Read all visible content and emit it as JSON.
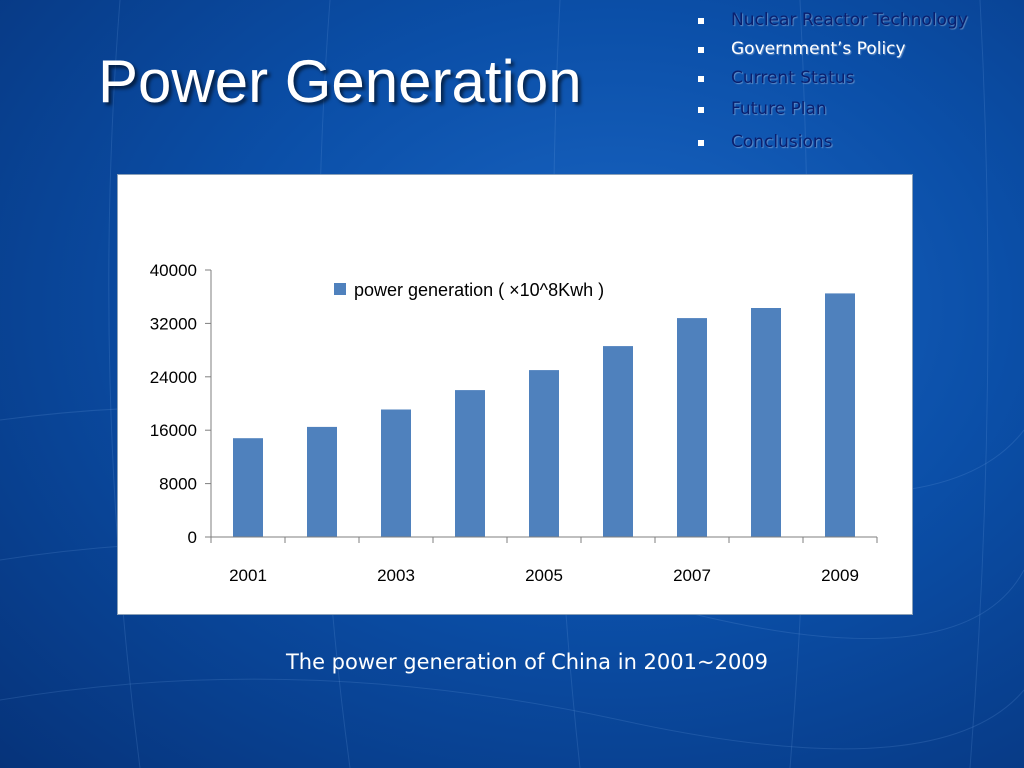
{
  "slide": {
    "title": "Power Generation",
    "caption": "The power generation of China in 2001~2009"
  },
  "nav": {
    "items": [
      {
        "label": "Nuclear Reactor Technology",
        "color": "#0a1f6e"
      },
      {
        "label": "Government’s Policy",
        "color": "#ffffff"
      },
      {
        "label": "Current Status",
        "color": "#0a1f6e"
      },
      {
        "label": "Future Plan",
        "color": "#0a1f6e"
      },
      {
        "label": "Conclusions",
        "color": "#0a1f6e"
      }
    ]
  },
  "colors": {
    "bar": "#4f81bd",
    "axis": "#7f7f7f"
  },
  "chart_data": {
    "type": "bar",
    "x": [
      2001,
      2002,
      2003,
      2004,
      2005,
      2006,
      2007,
      2008,
      2009
    ],
    "tick_labels": [
      "2001",
      "2003",
      "2005",
      "2007",
      "2009"
    ],
    "series": [
      {
        "name": "power generation ( ×10^8Kwh )",
        "values": [
          14800,
          16500,
          19100,
          22000,
          25000,
          28600,
          32800,
          34300,
          36500
        ]
      }
    ],
    "y_ticks": [
      "0",
      "8000",
      "16000",
      "24000",
      "32000",
      "40000"
    ],
    "ylim": [
      0,
      40000
    ],
    "legend_position": "top-center",
    "grid": false
  }
}
